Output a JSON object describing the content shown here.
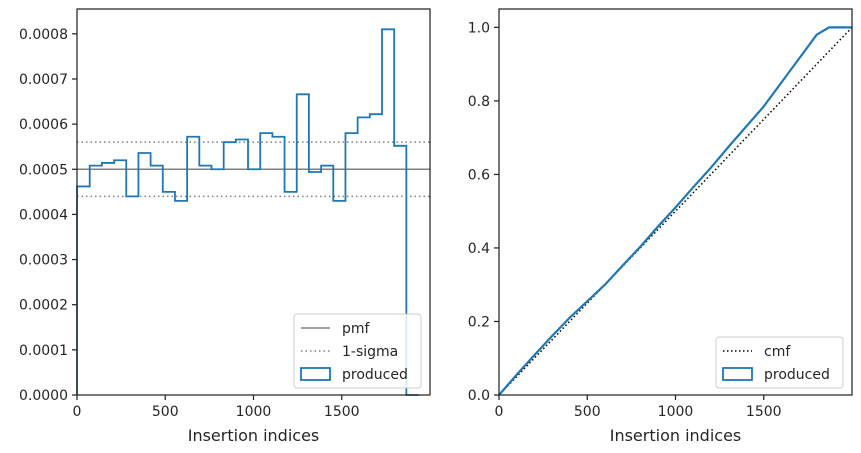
{
  "chart_data": [
    {
      "type": "histogram-step",
      "xlabel": "Insertion indices",
      "ylabel": "",
      "xlim": [
        0,
        2000
      ],
      "ylim": [
        0,
        0.000855
      ],
      "xticks": [
        0,
        500,
        1000,
        1500
      ],
      "xtick_labels": [
        "0",
        "500",
        "1000",
        "1500"
      ],
      "yticks": [
        0,
        0.0001,
        0.0002,
        0.0003,
        0.0004,
        0.0005,
        0.0006,
        0.0007,
        0.0008
      ],
      "ytick_labels": [
        "0.0000",
        "0.0001",
        "0.0002",
        "0.0003",
        "0.0004",
        "0.0005",
        "0.0006",
        "0.0007",
        "0.0008"
      ],
      "pmf": 0.0005,
      "sigma_band": [
        0.00044,
        0.00056
      ],
      "bin_edges": [
        0,
        72,
        141,
        210,
        279,
        348,
        417,
        486,
        555,
        624,
        693,
        762,
        831,
        900,
        969,
        1038,
        1107,
        1176,
        1245,
        1314,
        1383,
        1452,
        1521,
        1590,
        1659,
        1728,
        1797,
        1866,
        1935
      ],
      "produced": [
        0.000462,
        0.000508,
        0.000514,
        0.00052,
        0.00044,
        0.000536,
        0.000508,
        0.00045,
        0.00043,
        0.000572,
        0.000508,
        0.0005,
        0.00056,
        0.000566,
        0.0005,
        0.00058,
        0.000572,
        0.00045,
        0.000666,
        0.000494,
        0.000508,
        0.00043,
        0.00058,
        0.000615,
        0.000622,
        0.00081,
        0.000552,
        0.0
      ],
      "legend": [
        "pmf",
        "1-sigma",
        "produced"
      ],
      "legend_position": "lower-right",
      "colors": {
        "pmf": "#808080",
        "sigma": "#808080",
        "produced": "#1f77b4"
      }
    },
    {
      "type": "line",
      "xlabel": "Insertion indices",
      "ylabel": "",
      "xlim": [
        0,
        2000
      ],
      "ylim": [
        0,
        1.05
      ],
      "xticks": [
        0,
        500,
        1000,
        1500
      ],
      "xtick_labels": [
        "0",
        "500",
        "1000",
        "1500"
      ],
      "yticks": [
        0,
        0.2,
        0.4,
        0.6,
        0.8,
        1.0
      ],
      "ytick_labels": [
        "0.0",
        "0.2",
        "0.4",
        "0.6",
        "0.8",
        "1.0"
      ],
      "cmf": {
        "x": [
          0,
          2000
        ],
        "y": [
          0,
          1.0
        ]
      },
      "produced": {
        "x": [
          0,
          100,
          200,
          300,
          400,
          500,
          600,
          700,
          800,
          900,
          1000,
          1100,
          1200,
          1300,
          1400,
          1500,
          1600,
          1700,
          1800,
          1870,
          1900,
          2000
        ],
        "y": [
          0,
          0.055,
          0.108,
          0.16,
          0.21,
          0.255,
          0.3,
          0.352,
          0.403,
          0.458,
          0.51,
          0.565,
          0.618,
          0.675,
          0.73,
          0.785,
          0.85,
          0.915,
          0.98,
          1.0,
          1.0,
          1.0
        ]
      },
      "legend": [
        "cmf",
        "produced"
      ],
      "legend_position": "lower-right",
      "colors": {
        "cmf": "#000000",
        "produced": "#1f77b4"
      }
    }
  ]
}
